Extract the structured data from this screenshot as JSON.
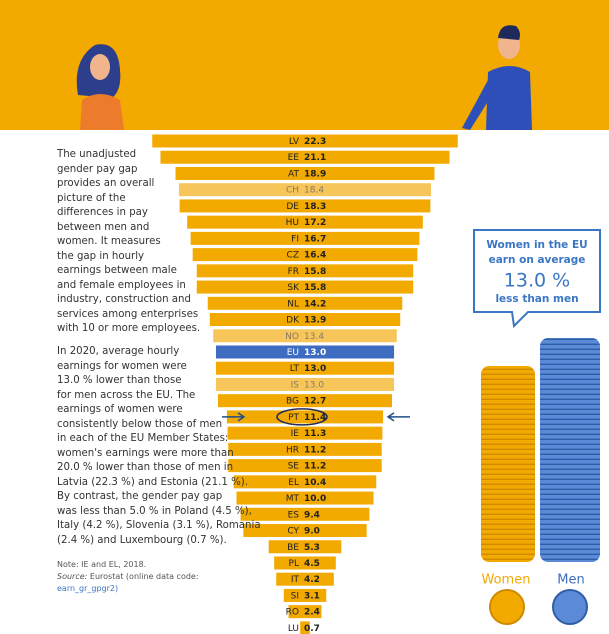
{
  "chart_data": {
    "type": "funnel-bar",
    "categories": [
      "LV",
      "EE",
      "AT",
      "CH",
      "DE",
      "HU",
      "FI",
      "CZ",
      "FR",
      "SK",
      "NL",
      "DK",
      "NO",
      "EU",
      "LT",
      "IS",
      "BG",
      "PT",
      "IE",
      "HR",
      "SE",
      "EL",
      "MT",
      "ES",
      "CY",
      "BE",
      "PL",
      "IT",
      "SI",
      "RO",
      "LU"
    ],
    "values": [
      22.3,
      21.1,
      18.9,
      18.4,
      18.3,
      17.2,
      16.7,
      16.4,
      15.8,
      15.8,
      14.2,
      13.9,
      13.4,
      13.0,
      13.0,
      13.0,
      12.7,
      11.4,
      11.3,
      11.2,
      11.2,
      10.4,
      10.0,
      9.4,
      9.0,
      5.3,
      4.5,
      4.2,
      3.1,
      2.4,
      0.7
    ],
    "value_labels": [
      "22.3",
      "21.1",
      "18.9",
      "18.4",
      "18.3",
      "17.2",
      "16.7",
      "16.4",
      "15.8",
      "15.8",
      "14.2",
      "13.9",
      "13.4",
      "13.0",
      "13.0",
      "13.0",
      "12.7",
      "11.4",
      "11.3",
      "11.2",
      "11.2",
      "10.4",
      "10.0",
      "9.4",
      "9.0",
      "5.3",
      "4.5",
      "4.2",
      "3.1",
      "2.4",
      "0.7"
    ],
    "colors": [
      "#f2a900",
      "#f2a900",
      "#f2a900",
      "#f7c65a",
      "#f2a900",
      "#f2a900",
      "#f2a900",
      "#f2a900",
      "#f2a900",
      "#f2a900",
      "#f2a900",
      "#f2a900",
      "#f7c65a",
      "#3d6cc0",
      "#f2a900",
      "#f7c65a",
      "#f2a900",
      "#f2a900",
      "#f2a900",
      "#f2a900",
      "#f2a900",
      "#f2a900",
      "#f2a900",
      "#f2a900",
      "#f2a900",
      "#f2a900",
      "#f2a900",
      "#f2a900",
      "#f2a900",
      "#f2a900",
      "#f2a900"
    ]
  },
  "text": {
    "paragraph_1": [
      "The unadjusted",
      "gender pay gap",
      "provides an overall",
      "picture of the",
      "differences in pay",
      "between men and",
      "women. It measures",
      "the gap in hourly",
      "earnings between male",
      "and female employees in",
      "industry, construction and",
      "services among enterprises",
      "with 10 or more employees."
    ],
    "paragraph_2": [
      "In 2020, average hourly",
      "earnings for women were",
      "13.0 % lower than those",
      "for men across the EU. The",
      "earnings of women were",
      "consistently below those of men",
      "in each of the EU Member States:",
      "women's earnings were more than",
      "20.0 % lower than those of men in",
      "Latvia (22.3 %) and Estonia (21.1 %).",
      "By contrast, the gender pay gap",
      "was less than 5.0 % in Poland (4.5 %),",
      "Italy (4.2 %), Slovenia (3.1 %), Romania",
      "(2.4 %) and Luxembourg (0.7 %)."
    ],
    "note": "Note: IE and EL, 2018.",
    "source_label": "Source:",
    "source_text": "Eurostat (online data code:",
    "source_code": "earn_gr_gpgr2)"
  },
  "callout": {
    "line_1": "Women in the EU",
    "line_2": "earn on average",
    "figure": "13.0 %",
    "line_3": "less than men"
  },
  "legend": {
    "women": "Women",
    "men": "Men"
  }
}
